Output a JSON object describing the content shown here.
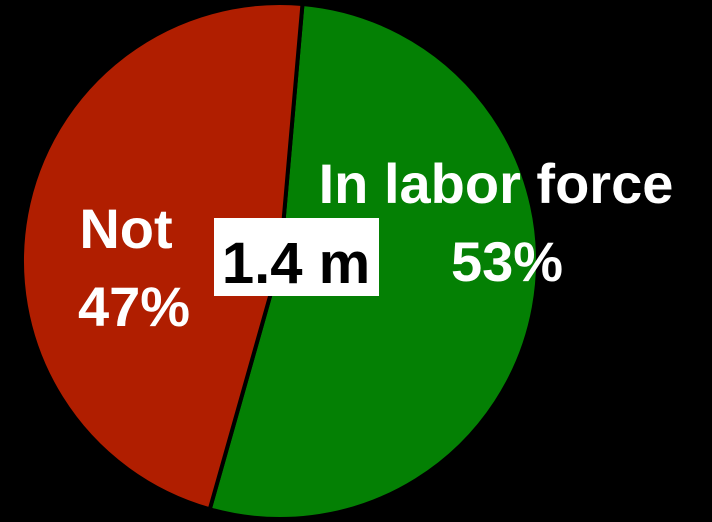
{
  "chart_data": {
    "type": "pie",
    "center_label": "1.4 m",
    "slices": [
      {
        "label": "In labor force",
        "value": 53,
        "value_label": "53%",
        "color": "#048004"
      },
      {
        "label": "Not",
        "value": 47,
        "value_label": "47%",
        "color": "#b01e00"
      }
    ],
    "background": "#000000",
    "slice_outline_color": "#000000"
  }
}
